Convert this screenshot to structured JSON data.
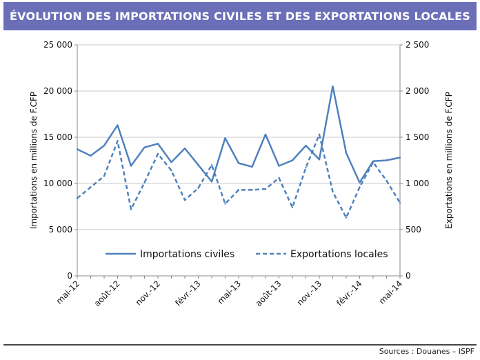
{
  "header": {
    "title": "ÉVOLUTION DES IMPORTATIONS CIVILES ET DES EXPORTATIONS LOCALES"
  },
  "footer": {
    "source": "Sources : Douanes – ISPF"
  },
  "colors": {
    "header_bg": "#6b6fb8",
    "series": "#4f81bd",
    "grid": "#c8c8c8"
  },
  "chart_data": {
    "type": "line",
    "title": "",
    "x_tick_labels": [
      "mai-12",
      "août-12",
      "nov.-12",
      "févr.-13",
      "mai-13",
      "août-13",
      "nov.-13",
      "févr.-14",
      "mai-14"
    ],
    "ylabel_left": "Importations en millions de F.CFP",
    "ylabel_right": "Exportations en millions de F.CFP",
    "y_left_ticks": [
      "0",
      "5 000",
      "10 000",
      "15 000",
      "20 000",
      "25 000"
    ],
    "y_right_ticks": [
      "0",
      "500",
      "1 000",
      "1 500",
      "2 000",
      "2 500"
    ],
    "ylim_left": [
      0,
      25000
    ],
    "ylim_right": [
      0,
      2500
    ],
    "grid": "horizontal",
    "legend_position": "bottom-center",
    "series": [
      {
        "name": "Importations civiles",
        "axis": "left",
        "style": "solid",
        "values": [
          13700,
          13000,
          14100,
          16300,
          11900,
          13900,
          14300,
          12300,
          13800,
          12000,
          10200,
          14900,
          12200,
          11800,
          15300,
          11900,
          12500,
          14100,
          12600,
          20500,
          13300,
          10100,
          12400,
          12500,
          12800
        ]
      },
      {
        "name": "Exportations locales",
        "axis": "right",
        "style": "dashed",
        "values": [
          840,
          960,
          1080,
          1460,
          720,
          1010,
          1320,
          1140,
          820,
          950,
          1200,
          780,
          930,
          930,
          940,
          1060,
          740,
          1170,
          1530,
          910,
          630,
          960,
          1230,
          1030,
          790
        ]
      }
    ]
  }
}
